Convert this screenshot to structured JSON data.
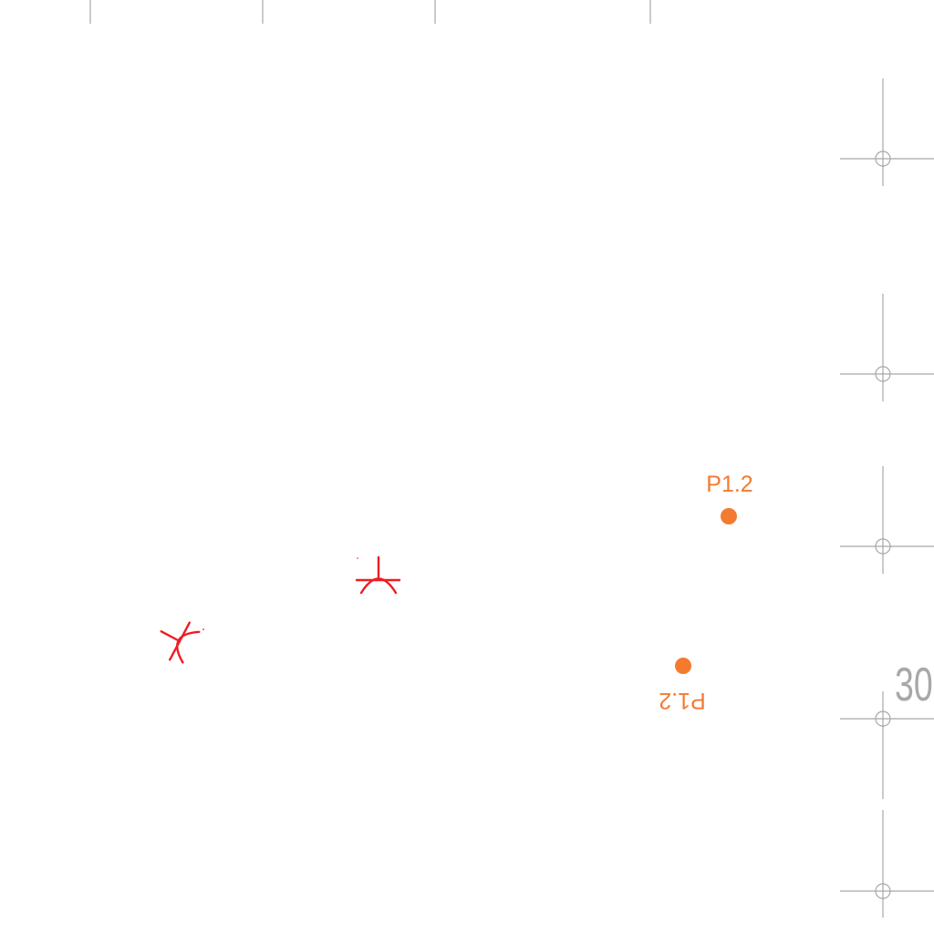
{
  "colors": {
    "background": "#ffffff",
    "grid": "#a8a8a8",
    "mark": "#ee1c24",
    "point": "#f47a30"
  },
  "grid_label": "30",
  "points": [
    {
      "id": "p1",
      "label": "P1.2"
    },
    {
      "id": "p2",
      "label": "P1.2"
    }
  ],
  "marks": [
    {
      "id": "m1",
      "icon": "arc-cross-mark-icon"
    },
    {
      "id": "m2",
      "icon": "arc-cross-mark-icon"
    }
  ]
}
